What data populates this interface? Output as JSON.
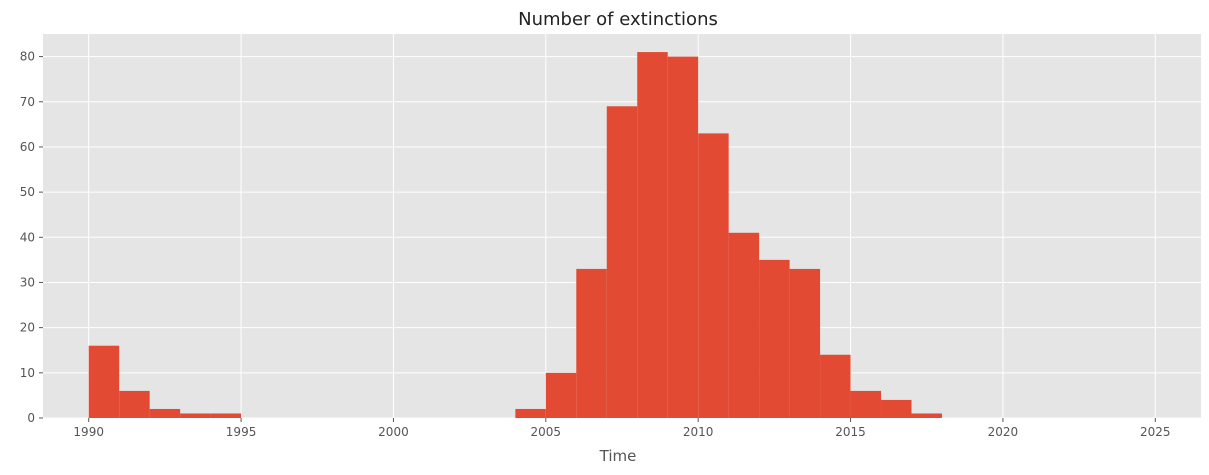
{
  "chart_data": {
    "type": "bar",
    "title": "Number of extinctions",
    "xlabel": "Time",
    "ylabel": "",
    "xlim": [
      1988.5,
      2026.5
    ],
    "ylim": [
      0,
      85
    ],
    "xticks": [
      1990,
      1995,
      2000,
      2005,
      2010,
      2015,
      2020,
      2025
    ],
    "xtick_labels": [
      "1990",
      "1995",
      "2000",
      "2005",
      "2010",
      "2015",
      "2020",
      "2025"
    ],
    "yticks": [
      0,
      10,
      20,
      30,
      40,
      50,
      60,
      70,
      80
    ],
    "ytick_labels": [
      "0",
      "10",
      "20",
      "30",
      "40",
      "50",
      "60",
      "70",
      "80"
    ],
    "bin_width": 1,
    "bins": [
      {
        "start": 1990,
        "value": 16
      },
      {
        "start": 1991,
        "value": 6
      },
      {
        "start": 1992,
        "value": 2
      },
      {
        "start": 1993,
        "value": 1
      },
      {
        "start": 1994,
        "value": 1
      },
      {
        "start": 2004,
        "value": 2
      },
      {
        "start": 2005,
        "value": 10
      },
      {
        "start": 2006,
        "value": 33
      },
      {
        "start": 2007,
        "value": 69
      },
      {
        "start": 2008,
        "value": 81
      },
      {
        "start": 2009,
        "value": 80
      },
      {
        "start": 2010,
        "value": 63
      },
      {
        "start": 2011,
        "value": 41
      },
      {
        "start": 2012,
        "value": 35
      },
      {
        "start": 2013,
        "value": 33
      },
      {
        "start": 2014,
        "value": 14
      },
      {
        "start": 2015,
        "value": 6
      },
      {
        "start": 2016,
        "value": 4
      },
      {
        "start": 2017,
        "value": 1
      }
    ],
    "grid": true,
    "colors": {
      "bar": "#e24a33",
      "background": "#e5e5e5",
      "grid": "#ffffff"
    }
  }
}
